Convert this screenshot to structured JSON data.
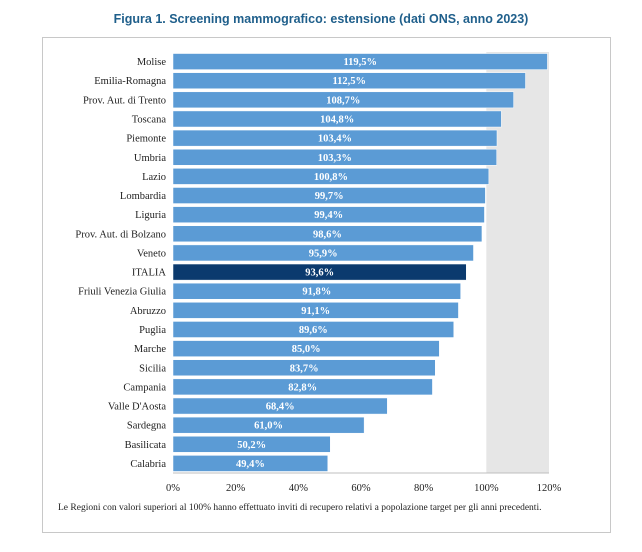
{
  "chart_data": {
    "type": "bar",
    "orientation": "horizontal",
    "title": "Figura 1. Screening mammografico: estensione (dati ONS, anno 2023)",
    "categories": [
      "Molise",
      "Emilia-Romagna",
      "Prov. Aut. di Trento",
      "Toscana",
      "Piemonte",
      "Umbria",
      "Lazio",
      "Lombardia",
      "Liguria",
      "Prov. Aut. di Bolzano",
      "Veneto",
      "ITALIA",
      "Friuli Venezia Giulia",
      "Abruzzo",
      "Puglia",
      "Marche",
      "Sicilia",
      "Campania",
      "Valle D'Aosta",
      "Sardegna",
      "Basilicata",
      "Calabria"
    ],
    "values": [
      119.5,
      112.5,
      108.7,
      104.8,
      103.4,
      103.3,
      100.8,
      99.7,
      99.4,
      98.6,
      95.9,
      93.6,
      91.8,
      91.1,
      89.6,
      85.0,
      83.7,
      82.8,
      68.4,
      61.0,
      50.2,
      49.4
    ],
    "value_labels": [
      "119,5%",
      "112,5%",
      "108,7%",
      "104,8%",
      "103,4%",
      "103,3%",
      "100,8%",
      "99,7%",
      "99,4%",
      "98,6%",
      "95,9%",
      "93,6%",
      "91,8%",
      "91,1%",
      "89,6%",
      "85,0%",
      "83,7%",
      "82,8%",
      "68,4%",
      "61,0%",
      "50,2%",
      "49,4%"
    ],
    "highlight": "ITALIA",
    "xlim": [
      0,
      120
    ],
    "xticks": [
      "0%",
      "20%",
      "40%",
      "60%",
      "80%",
      "100%",
      "120%"
    ],
    "shaded_region": [
      100,
      120
    ],
    "colors": {
      "bar": "#5b9bd5",
      "highlight": "#0b3a6e",
      "shade": "#e6e6e6",
      "bar_edge": "#ffffff"
    },
    "grid": false
  },
  "note": "Le Regioni con valori superiori al 100% hanno effettuato inviti di recupero relativi a popolazione target per gli anni precedenti."
}
